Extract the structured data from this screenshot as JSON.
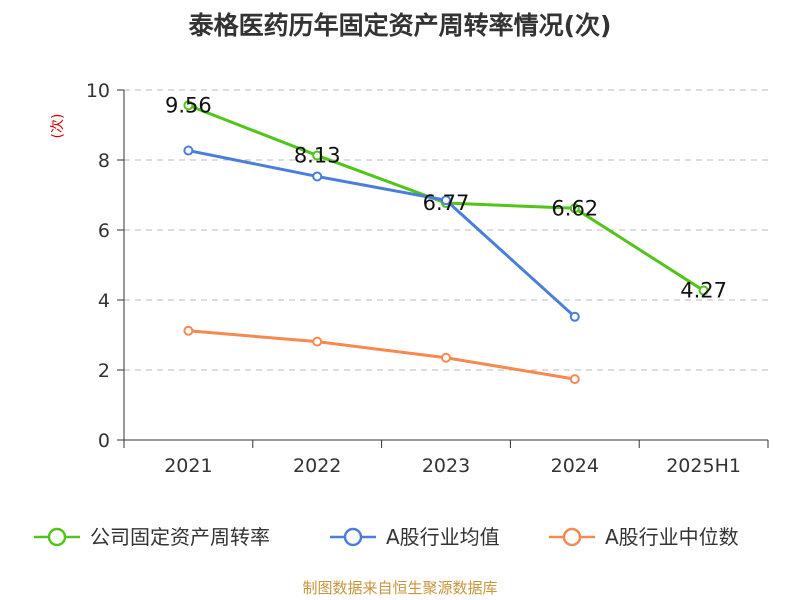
{
  "chart_data": {
    "type": "line",
    "title": "泰格医药历年固定资产周转率情况(次)",
    "ylabel": "(次)",
    "xlabel": "",
    "categories": [
      "2021",
      "2022",
      "2023",
      "2024",
      "2025H1"
    ],
    "ylim": [
      0,
      10
    ],
    "yticks": [
      0,
      2,
      4,
      6,
      8,
      10
    ],
    "grid": "horizontal dashed",
    "legend_position": "bottom",
    "series": [
      {
        "name": "公司固定资产周转率",
        "color": "#52c41a",
        "values": [
          9.56,
          8.13,
          6.77,
          6.62,
          4.27
        ],
        "data_labels": [
          "9.56",
          "8.13",
          "6.77",
          "6.62",
          "4.27"
        ]
      },
      {
        "name": "A股行业均值",
        "color": "#4a7fd9",
        "values": [
          8.27,
          7.53,
          6.85,
          3.52,
          null
        ],
        "data_labels": []
      },
      {
        "name": "A股行业中位数",
        "color": "#f5894f",
        "values": [
          3.12,
          2.81,
          2.35,
          1.74,
          null
        ],
        "data_labels": []
      }
    ]
  },
  "footer": {
    "source": "制图数据来自恒生聚源数据库"
  }
}
